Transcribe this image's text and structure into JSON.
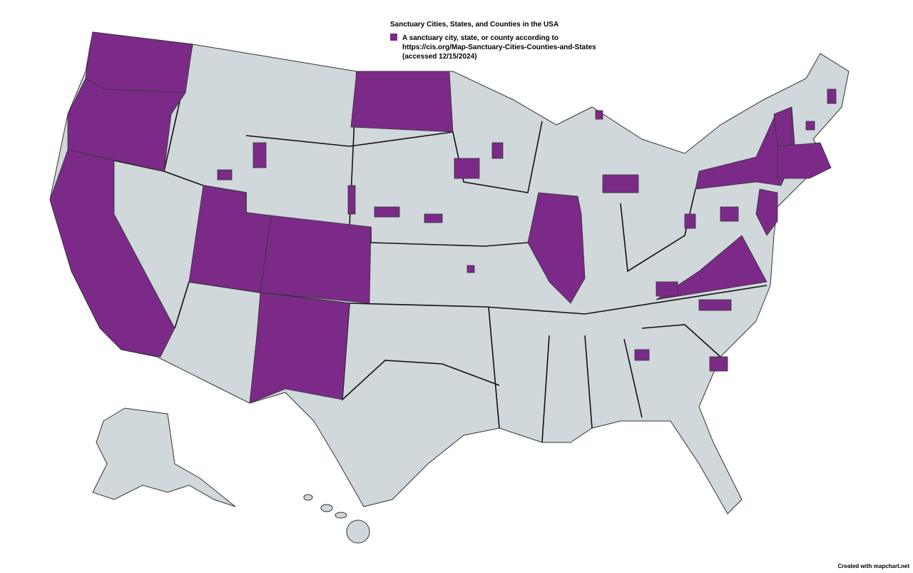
{
  "title": "Sanctuary Cities, States, and Counties in the USA",
  "legend": {
    "color": "#7b2a88",
    "lines": [
      "A sanctuary city, state, or county according to",
      "https://cis.org/Map-Sanctuary-Cities-Counties-and-States",
      "(accessed 12/15/2024)"
    ]
  },
  "credit": "Created with mapchart.net"
}
